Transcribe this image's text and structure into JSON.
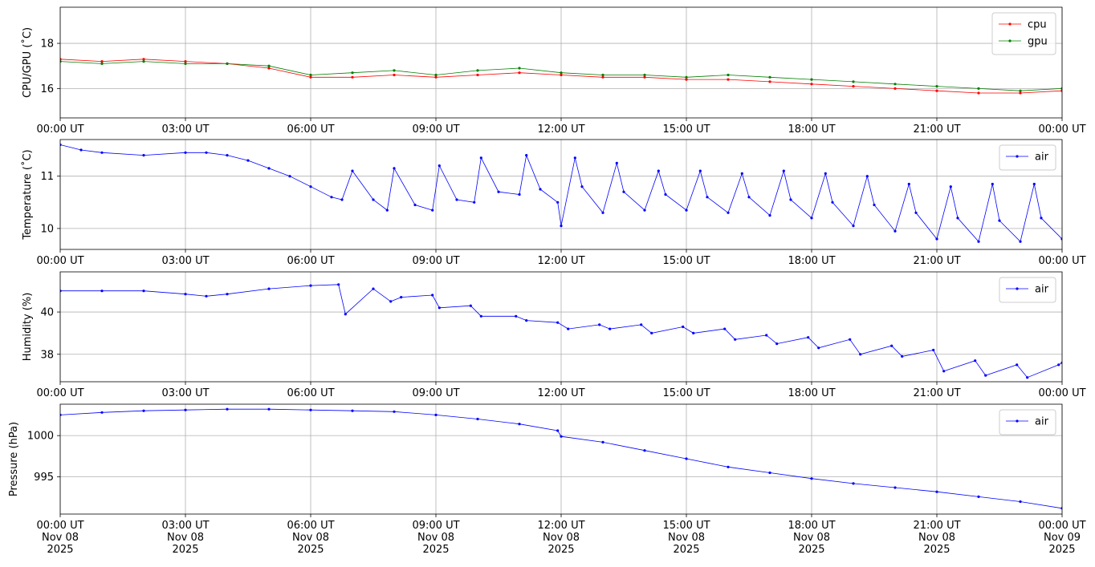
{
  "chart_data": [
    {
      "type": "line",
      "ylabel": "CPU/GPU (˚C)",
      "ylim": [
        14.7,
        19.6
      ],
      "yticks": [
        16,
        18
      ],
      "xlim": [
        "2025-11-08 00:00",
        "2025-11-09 00:00"
      ],
      "xtick_labels": [
        "00:00 UT",
        "03:00 UT",
        "06:00 UT",
        "09:00 UT",
        "12:00 UT",
        "15:00 UT",
        "18:00 UT",
        "21:00 UT",
        "00:00 UT"
      ],
      "grid": true,
      "legend": "top-right",
      "series": [
        {
          "name": "cpu",
          "color": "#ff0000",
          "x": [
            "00:00",
            "01:00",
            "02:00",
            "03:00",
            "04:00",
            "05:00",
            "06:00",
            "07:00",
            "08:00",
            "09:00",
            "10:00",
            "11:00",
            "12:00",
            "13:00",
            "14:00",
            "15:00",
            "16:00",
            "17:00",
            "18:00",
            "19:00",
            "20:00",
            "21:00",
            "22:00",
            "23:00",
            "24:00"
          ],
          "y": [
            17.3,
            17.2,
            17.3,
            17.2,
            17.1,
            16.9,
            16.5,
            16.5,
            16.6,
            16.5,
            16.6,
            16.7,
            16.6,
            16.5,
            16.5,
            16.4,
            16.4,
            16.3,
            16.2,
            16.1,
            16.0,
            15.9,
            15.8,
            15.8,
            15.9
          ]
        },
        {
          "name": "gpu",
          "color": "#008000",
          "x": [
            "00:00",
            "01:00",
            "02:00",
            "03:00",
            "04:00",
            "05:00",
            "06:00",
            "07:00",
            "08:00",
            "09:00",
            "10:00",
            "11:00",
            "12:00",
            "13:00",
            "14:00",
            "15:00",
            "16:00",
            "17:00",
            "18:00",
            "19:00",
            "20:00",
            "21:00",
            "22:00",
            "23:00",
            "24:00"
          ],
          "y": [
            17.2,
            17.1,
            17.2,
            17.1,
            17.1,
            17.0,
            16.6,
            16.7,
            16.8,
            16.6,
            16.8,
            16.9,
            16.7,
            16.6,
            16.6,
            16.5,
            16.6,
            16.5,
            16.4,
            16.3,
            16.2,
            16.1,
            16.0,
            15.9,
            16.0
          ]
        }
      ]
    },
    {
      "type": "line",
      "ylabel": "Temperature (˚C)",
      "ylim": [
        9.6,
        11.7
      ],
      "yticks": [
        10,
        11
      ],
      "xlim": [
        "2025-11-08 00:00",
        "2025-11-09 00:00"
      ],
      "xtick_labels": [
        "00:00 UT",
        "03:00 UT",
        "06:00 UT",
        "09:00 UT",
        "12:00 UT",
        "15:00 UT",
        "18:00 UT",
        "21:00 UT",
        "00:00 UT"
      ],
      "grid": true,
      "legend": "top-right",
      "series": [
        {
          "name": "air",
          "color": "#0000ff",
          "x": [
            "00:00",
            "00:30",
            "01:00",
            "02:00",
            "03:00",
            "03:30",
            "04:00",
            "04:30",
            "05:00",
            "05:30",
            "06:00",
            "06:30",
            "06:45",
            "07:00",
            "07:30",
            "07:50",
            "08:00",
            "08:30",
            "08:55",
            "09:05",
            "09:30",
            "09:55",
            "10:05",
            "10:30",
            "11:00",
            "11:10",
            "11:30",
            "11:55",
            "12:00",
            "12:20",
            "12:30",
            "13:00",
            "13:20",
            "13:30",
            "14:00",
            "14:20",
            "14:30",
            "15:00",
            "15:20",
            "15:30",
            "16:00",
            "16:20",
            "16:30",
            "17:00",
            "17:20",
            "17:30",
            "18:00",
            "18:20",
            "18:30",
            "19:00",
            "19:20",
            "19:30",
            "20:00",
            "20:20",
            "20:30",
            "21:00",
            "21:20",
            "21:30",
            "22:00",
            "22:20",
            "22:30",
            "23:00",
            "23:20",
            "23:30",
            "24:00"
          ],
          "y": [
            11.6,
            11.5,
            11.45,
            11.4,
            11.45,
            11.45,
            11.4,
            11.3,
            11.15,
            11.0,
            10.8,
            10.6,
            10.55,
            11.1,
            10.55,
            10.35,
            11.15,
            10.45,
            10.35,
            11.2,
            10.55,
            10.5,
            11.35,
            10.7,
            10.65,
            11.4,
            10.75,
            10.5,
            10.05,
            11.35,
            10.8,
            10.3,
            11.25,
            10.7,
            10.35,
            11.1,
            10.65,
            10.35,
            11.1,
            10.6,
            10.3,
            11.05,
            10.6,
            10.25,
            11.1,
            10.55,
            10.2,
            11.05,
            10.5,
            10.05,
            11.0,
            10.45,
            9.95,
            10.85,
            10.3,
            9.8,
            10.8,
            10.2,
            9.75,
            10.85,
            10.15,
            9.75,
            10.85,
            10.2,
            9.8
          ]
        }
      ]
    },
    {
      "type": "line",
      "ylabel": "Humidity (%)",
      "ylim": [
        36.7,
        41.9
      ],
      "yticks": [
        38,
        40
      ],
      "xlim": [
        "2025-11-08 00:00",
        "2025-11-09 00:00"
      ],
      "xtick_labels": [
        "00:00 UT",
        "03:00 UT",
        "06:00 UT",
        "09:00 UT",
        "12:00 UT",
        "15:00 UT",
        "18:00 UT",
        "21:00 UT",
        "00:00 UT"
      ],
      "grid": true,
      "legend": "top-right",
      "series": [
        {
          "name": "air",
          "color": "#0000ff",
          "x": [
            "00:00",
            "01:00",
            "02:00",
            "03:00",
            "03:30",
            "04:00",
            "05:00",
            "06:00",
            "06:40",
            "06:50",
            "07:30",
            "07:55",
            "08:10",
            "08:55",
            "09:05",
            "09:50",
            "10:05",
            "10:55",
            "11:10",
            "11:55",
            "12:10",
            "12:55",
            "13:10",
            "13:55",
            "14:10",
            "14:55",
            "15:10",
            "15:55",
            "16:10",
            "16:55",
            "17:10",
            "17:55",
            "18:10",
            "18:55",
            "19:10",
            "19:55",
            "20:10",
            "20:55",
            "21:10",
            "21:55",
            "22:10",
            "22:55",
            "23:10",
            "23:55",
            "24:00"
          ],
          "y": [
            41.0,
            41.0,
            41.0,
            40.85,
            40.75,
            40.85,
            41.1,
            41.25,
            41.3,
            39.9,
            41.1,
            40.5,
            40.7,
            40.8,
            40.2,
            40.3,
            39.8,
            39.8,
            39.6,
            39.5,
            39.2,
            39.4,
            39.2,
            39.4,
            39.0,
            39.3,
            39.0,
            39.2,
            38.7,
            38.9,
            38.5,
            38.8,
            38.3,
            38.7,
            38.0,
            38.4,
            37.9,
            38.2,
            37.2,
            37.7,
            37.0,
            37.5,
            36.9,
            37.5,
            37.6
          ]
        }
      ]
    },
    {
      "type": "line",
      "ylabel": "Pressure (hPa)",
      "ylim": [
        990.5,
        1003.8
      ],
      "yticks": [
        995,
        1000
      ],
      "xlim": [
        "2025-11-08 00:00",
        "2025-11-09 00:00"
      ],
      "xtick_labels": [
        "00:00 UT\nNov 08\n2025",
        "03:00 UT\nNov 08\n2025",
        "06:00 UT\nNov 08\n2025",
        "09:00 UT\nNov 08\n2025",
        "12:00 UT\nNov 08\n2025",
        "15:00 UT\nNov 08\n2025",
        "18:00 UT\nNov 08\n2025",
        "21:00 UT\nNov 08\n2025",
        "00:00 UT\nNov 09\n2025"
      ],
      "grid": true,
      "legend": "top-right",
      "series": [
        {
          "name": "air",
          "color": "#0000ff",
          "x": [
            "00:00",
            "01:00",
            "02:00",
            "03:00",
            "04:00",
            "05:00",
            "06:00",
            "07:00",
            "08:00",
            "09:00",
            "10:00",
            "11:00",
            "11:55",
            "12:00",
            "13:00",
            "14:00",
            "15:00",
            "16:00",
            "17:00",
            "18:00",
            "19:00",
            "20:00",
            "21:00",
            "22:00",
            "23:00",
            "24:00"
          ],
          "y": [
            1002.5,
            1002.8,
            1003.0,
            1003.1,
            1003.2,
            1003.2,
            1003.1,
            1003.0,
            1002.9,
            1002.5,
            1002.0,
            1001.4,
            1000.6,
            999.9,
            999.2,
            998.2,
            997.2,
            996.2,
            995.5,
            994.8,
            994.2,
            993.7,
            993.2,
            992.6,
            992.0,
            991.2
          ]
        }
      ]
    }
  ]
}
